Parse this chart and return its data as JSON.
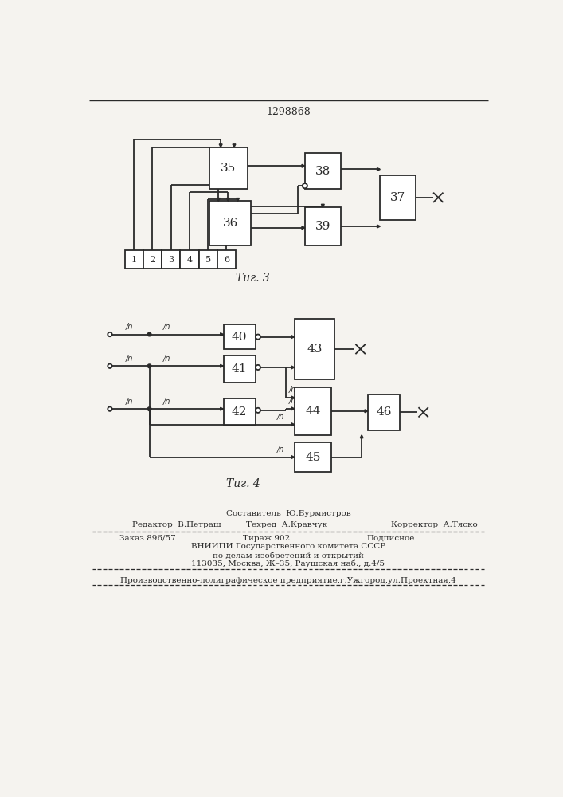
{
  "title": "1298868",
  "fig3_label": "Τиг. 3",
  "fig4_label": "Τиг. 4",
  "footer_editor": "Редактор  В.Петраш",
  "footer_tech": "Техред  А.Кравчук",
  "footer_comp": "Составитель  Ю.Бурмистров",
  "footer_corr": "Корректор  А.Тяско",
  "footer_order": "Заказ 896/57",
  "footer_circ": "Тираж 902",
  "footer_sign": "Подписное",
  "footer_vniip": "ВНИИПИ Государственного комитета СССР",
  "footer_affairs": "по делам изобретений и открытий",
  "footer_addr": "113035, Москва, Ж–35, Раушская наб., д.4/5",
  "footer_prod": "Производственно-полиграфическое предприятие,г.Ужгород,ул.Проектная,4",
  "bg_color": "#f5f3ef",
  "line_color": "#2a2a2a"
}
